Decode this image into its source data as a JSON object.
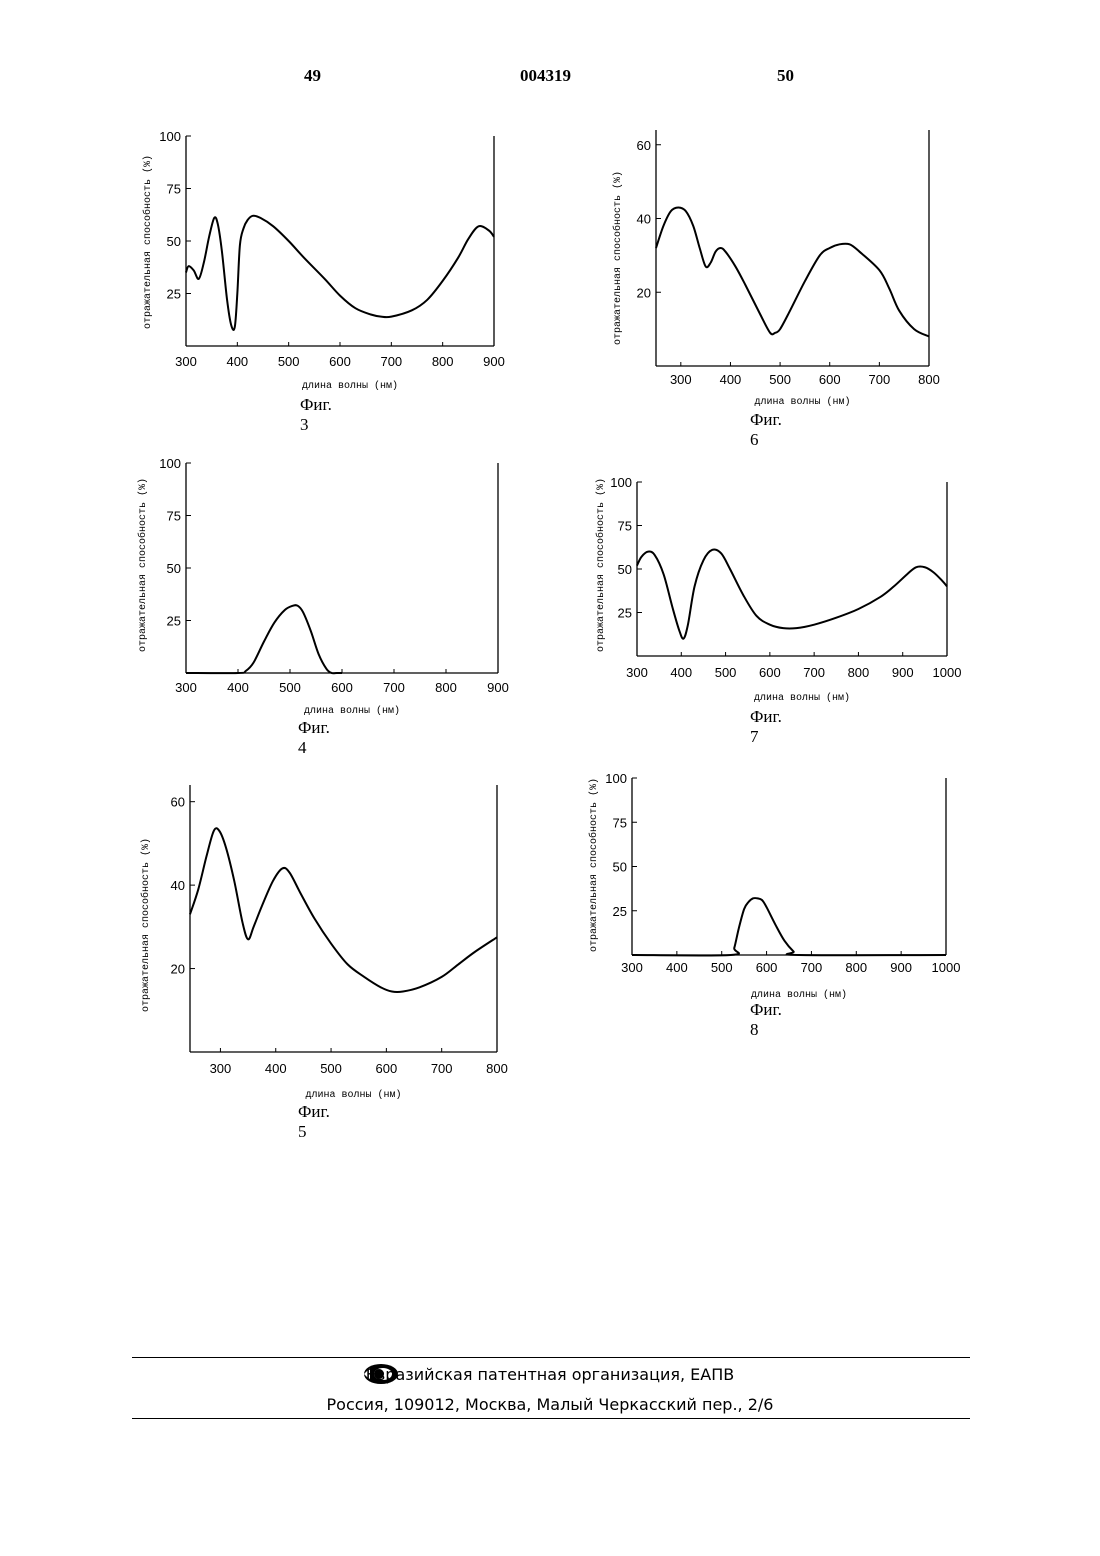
{
  "header": {
    "left_page": "49",
    "doc_number": "004319",
    "right_page": "50"
  },
  "y_axis_label": "отражательная способность (%)",
  "x_axis_label": "длина волны (нм)",
  "chart_data": [
    {
      "type": "line",
      "figure_label": "Фиг. 3",
      "xlabel": "длина волны (нм)",
      "ylabel": "отражательная способность (%)",
      "xlim": [
        300,
        900
      ],
      "ylim": [
        0,
        100
      ],
      "xticks": [
        300,
        400,
        500,
        600,
        700,
        800,
        900
      ],
      "yticks": [
        25,
        50,
        75,
        100
      ],
      "x": [
        300,
        305,
        315,
        325,
        335,
        345,
        355,
        362,
        370,
        380,
        388,
        395,
        400,
        405,
        412,
        420,
        430,
        445,
        470,
        500,
        530,
        570,
        600,
        630,
        660,
        680,
        700,
        740,
        770,
        800,
        830,
        850,
        870,
        890,
        900
      ],
      "y": [
        35,
        38,
        36,
        32,
        40,
        52,
        61,
        58,
        45,
        22,
        10,
        9,
        25,
        48,
        56,
        60,
        62,
        61,
        57,
        50,
        42,
        32,
        24,
        18,
        15,
        14,
        14,
        17,
        22,
        31,
        42,
        51,
        57,
        55,
        52
      ]
    },
    {
      "type": "line",
      "figure_label": "Фиг. 6",
      "xlabel": "длина волны (нм)",
      "ylabel": "отражательная способность (%)",
      "xlim": [
        250,
        800
      ],
      "ylim": [
        0,
        64
      ],
      "xticks": [
        300,
        400,
        500,
        600,
        700,
        800
      ],
      "yticks": [
        20,
        40,
        60
      ],
      "x": [
        250,
        265,
        280,
        295,
        310,
        325,
        338,
        350,
        360,
        370,
        380,
        390,
        410,
        430,
        460,
        480,
        490,
        500,
        520,
        550,
        580,
        600,
        620,
        640,
        660,
        700,
        720,
        740,
        770,
        800
      ],
      "y": [
        32,
        38,
        42,
        43,
        42,
        38,
        32,
        27,
        28,
        31,
        32,
        31,
        27,
        22,
        14,
        9,
        9,
        10,
        15,
        23,
        30,
        32,
        33,
        33,
        31,
        26,
        21,
        15,
        10,
        8
      ]
    },
    {
      "type": "line",
      "figure_label": "Фиг. 4",
      "xlabel": "длина волны (нм)",
      "ylabel": "отражательная способность (%)",
      "xlim": [
        300,
        900
      ],
      "ylim": [
        0,
        100
      ],
      "xticks": [
        300,
        400,
        500,
        600,
        700,
        800,
        900
      ],
      "yticks": [
        25,
        50,
        75,
        100
      ],
      "x": [
        300,
        400,
        415,
        430,
        450,
        470,
        490,
        505,
        515,
        525,
        540,
        555,
        570,
        580,
        590,
        600
      ],
      "y": [
        0,
        0,
        1,
        5,
        15,
        24,
        30,
        32,
        32,
        29,
        20,
        9,
        2,
        0,
        0,
        0
      ]
    },
    {
      "type": "line",
      "figure_label": "Фиг. 7",
      "xlabel": "длина волны (нм)",
      "ylabel": "отражательная способность (%)",
      "xlim": [
        300,
        1000
      ],
      "ylim": [
        0,
        100
      ],
      "xticks": [
        300,
        400,
        500,
        600,
        700,
        800,
        900,
        1000
      ],
      "yticks": [
        25,
        50,
        75,
        100
      ],
      "x": [
        300,
        310,
        325,
        340,
        360,
        380,
        395,
        405,
        415,
        430,
        450,
        470,
        490,
        510,
        540,
        570,
        600,
        630,
        660,
        700,
        750,
        800,
        850,
        880,
        910,
        930,
        950,
        970,
        990,
        1000
      ],
      "y": [
        52,
        57,
        60,
        58,
        47,
        28,
        15,
        10,
        18,
        40,
        55,
        61,
        59,
        50,
        35,
        23,
        18,
        16,
        16,
        18,
        22,
        27,
        34,
        40,
        47,
        51,
        51,
        48,
        43,
        40
      ]
    },
    {
      "type": "line",
      "figure_label": "Фиг. 5",
      "xlabel": "длина волны (нм)",
      "ylabel": "отражательная способность (%)",
      "xlim": [
        245,
        800
      ],
      "ylim": [
        0,
        64
      ],
      "xticks": [
        300,
        400,
        500,
        600,
        700,
        800
      ],
      "yticks": [
        20,
        40,
        60
      ],
      "x": [
        245,
        260,
        275,
        288,
        298,
        310,
        325,
        340,
        350,
        360,
        375,
        395,
        412,
        425,
        445,
        470,
        500,
        530,
        560,
        590,
        610,
        630,
        660,
        700,
        730,
        760,
        800
      ],
      "y": [
        33,
        39,
        47,
        53,
        53,
        49,
        41,
        31,
        27,
        30,
        35,
        41,
        44,
        43,
        38,
        32,
        26,
        21,
        18,
        15.5,
        14.5,
        14.5,
        15.5,
        18,
        21,
        24,
        27.5
      ]
    },
    {
      "type": "line",
      "figure_label": "Фиг. 8",
      "xlabel": "длина волны (нм)",
      "ylabel": "отражательная способность (%)",
      "xlim": [
        300,
        1000
      ],
      "ylim": [
        0,
        100
      ],
      "xticks": [
        300,
        400,
        500,
        600,
        700,
        800,
        900,
        1000
      ],
      "yticks": [
        25,
        50,
        75,
        100
      ],
      "x": [
        300,
        520,
        528,
        538,
        550,
        560,
        570,
        580,
        590,
        600,
        620,
        640,
        660,
        672,
        1000
      ],
      "y": [
        0,
        0,
        4,
        15,
        26,
        30,
        32,
        32,
        31,
        27,
        17,
        8,
        2,
        0,
        0
      ]
    }
  ],
  "footer": {
    "organization": "Евразийская патентная организация, ЕАПВ",
    "address": "Россия, 109012, Москва, Малый Черкасский пер., 2/6"
  }
}
